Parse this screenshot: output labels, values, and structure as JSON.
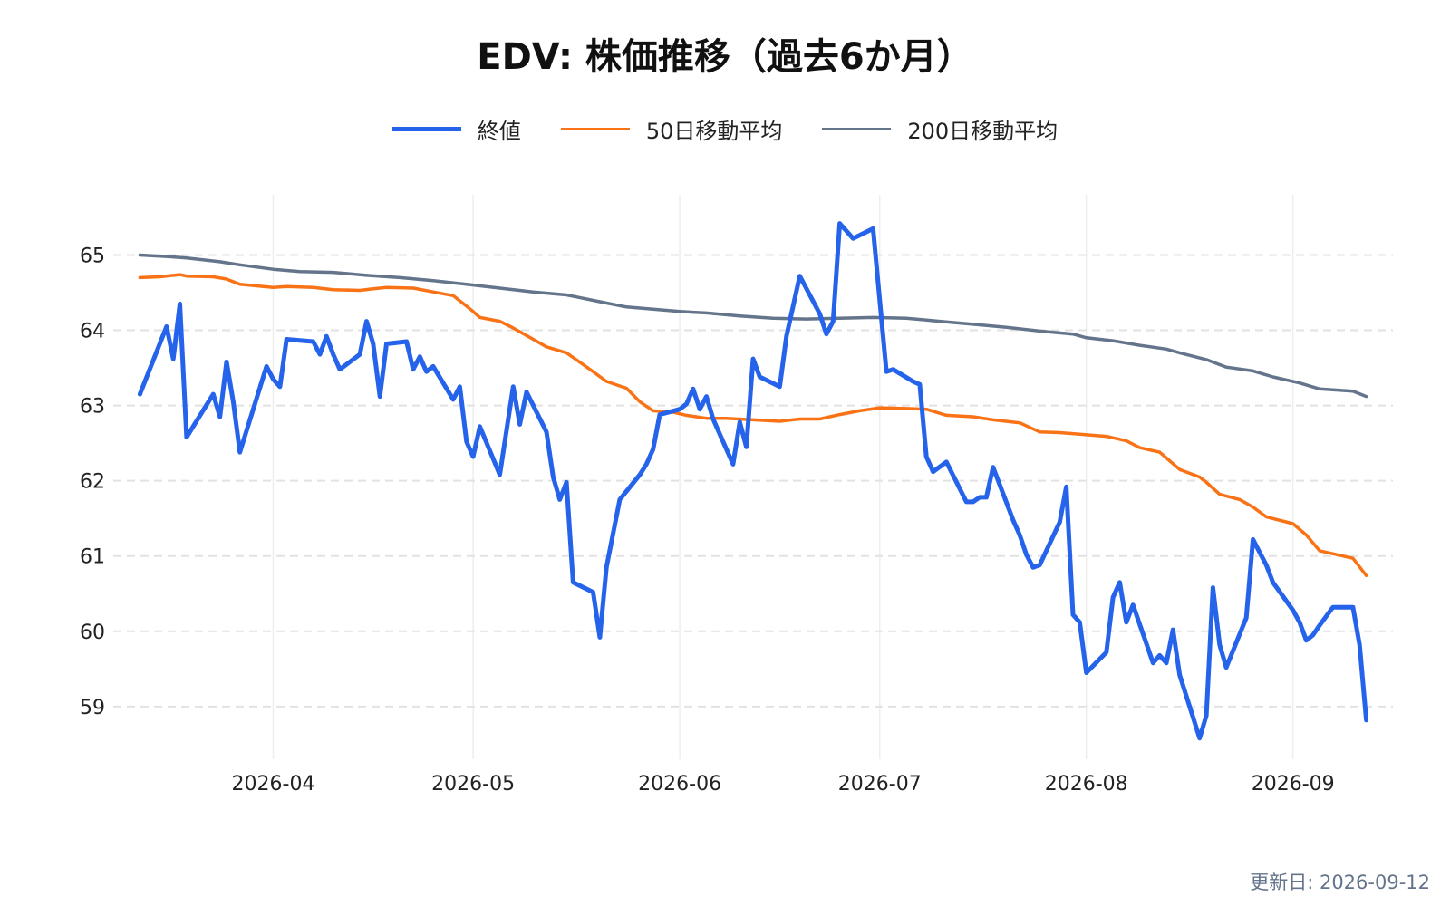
{
  "title": "EDV: 株価推移（過去6か月）",
  "updated": "更新日: 2026-09-12",
  "chart_data": {
    "type": "line",
    "title": "EDV: 株価推移（過去6か月）",
    "xlabel": "",
    "ylabel": "",
    "ylim": [
      58.3,
      65.8
    ],
    "xlim": [
      "2026-03-08",
      "2026-09-16"
    ],
    "x_ticks": [
      "2026-04-01",
      "2026-05-01",
      "2026-06-01",
      "2026-07-01",
      "2026-08-01",
      "2026-09-01"
    ],
    "x_tick_labels": [
      "2026-04",
      "2026-05",
      "2026-06",
      "2026-07",
      "2026-08",
      "2026-09"
    ],
    "y_ticks": [
      59,
      60,
      61,
      62,
      63,
      64,
      65
    ],
    "grid": true,
    "legend_position": "top-center",
    "series": [
      {
        "name": "終値",
        "color": "#2563eb",
        "width": 5,
        "points": [
          [
            "2026-03-12",
            63.15
          ],
          [
            "2026-03-16",
            64.05
          ],
          [
            "2026-03-17",
            63.62
          ],
          [
            "2026-03-18",
            64.35
          ],
          [
            "2026-03-19",
            62.58
          ],
          [
            "2026-03-23",
            63.15
          ],
          [
            "2026-03-24",
            62.85
          ],
          [
            "2026-03-25",
            63.58
          ],
          [
            "2026-03-26",
            63.05
          ],
          [
            "2026-03-27",
            62.38
          ],
          [
            "2026-03-31",
            63.52
          ],
          [
            "2026-04-01",
            63.35
          ],
          [
            "2026-04-02",
            63.25
          ],
          [
            "2026-04-03",
            63.88
          ],
          [
            "2026-04-07",
            63.85
          ],
          [
            "2026-04-08",
            63.68
          ],
          [
            "2026-04-09",
            63.92
          ],
          [
            "2026-04-10",
            63.68
          ],
          [
            "2026-04-11",
            63.48
          ],
          [
            "2026-04-14",
            63.68
          ],
          [
            "2026-04-15",
            64.12
          ],
          [
            "2026-04-16",
            63.82
          ],
          [
            "2026-04-17",
            63.12
          ],
          [
            "2026-04-18",
            63.82
          ],
          [
            "2026-04-21",
            63.85
          ],
          [
            "2026-04-22",
            63.48
          ],
          [
            "2026-04-23",
            63.65
          ],
          [
            "2026-04-24",
            63.45
          ],
          [
            "2026-04-25",
            63.52
          ],
          [
            "2026-04-28",
            63.08
          ],
          [
            "2026-04-29",
            63.25
          ],
          [
            "2026-04-30",
            62.52
          ],
          [
            "2026-05-01",
            62.32
          ],
          [
            "2026-05-02",
            62.72
          ],
          [
            "2026-05-05",
            62.08
          ],
          [
            "2026-05-07",
            63.25
          ],
          [
            "2026-05-08",
            62.75
          ],
          [
            "2026-05-09",
            63.18
          ],
          [
            "2026-05-12",
            62.65
          ],
          [
            "2026-05-13",
            62.05
          ],
          [
            "2026-05-14",
            61.75
          ],
          [
            "2026-05-15",
            61.98
          ],
          [
            "2026-05-16",
            60.65
          ],
          [
            "2026-05-19",
            60.52
          ],
          [
            "2026-05-20",
            59.92
          ],
          [
            "2026-05-21",
            60.85
          ],
          [
            "2026-05-23",
            61.75
          ],
          [
            "2026-05-26",
            62.08
          ],
          [
            "2026-05-27",
            62.22
          ],
          [
            "2026-05-28",
            62.42
          ],
          [
            "2026-05-29",
            62.88
          ],
          [
            "2026-06-01",
            62.95
          ],
          [
            "2026-06-02",
            63.02
          ],
          [
            "2026-06-03",
            63.22
          ],
          [
            "2026-06-04",
            62.95
          ],
          [
            "2026-06-05",
            63.12
          ],
          [
            "2026-06-06",
            62.82
          ],
          [
            "2026-06-09",
            62.22
          ],
          [
            "2026-06-10",
            62.78
          ],
          [
            "2026-06-11",
            62.45
          ],
          [
            "2026-06-12",
            63.62
          ],
          [
            "2026-06-13",
            63.38
          ],
          [
            "2026-06-16",
            63.25
          ],
          [
            "2026-06-17",
            63.92
          ],
          [
            "2026-06-19",
            64.72
          ],
          [
            "2026-06-22",
            64.22
          ],
          [
            "2026-06-23",
            63.95
          ],
          [
            "2026-06-24",
            64.12
          ],
          [
            "2026-06-25",
            65.42
          ],
          [
            "2026-06-27",
            65.22
          ],
          [
            "2026-06-30",
            65.35
          ],
          [
            "2026-07-02",
            63.45
          ],
          [
            "2026-07-03",
            63.48
          ],
          [
            "2026-07-06",
            63.32
          ],
          [
            "2026-07-07",
            63.28
          ],
          [
            "2026-07-08",
            62.32
          ],
          [
            "2026-07-09",
            62.12
          ],
          [
            "2026-07-11",
            62.25
          ],
          [
            "2026-07-14",
            61.72
          ],
          [
            "2026-07-15",
            61.72
          ],
          [
            "2026-07-16",
            61.78
          ],
          [
            "2026-07-17",
            61.78
          ],
          [
            "2026-07-18",
            62.18
          ],
          [
            "2026-07-21",
            61.48
          ],
          [
            "2026-07-22",
            61.28
          ],
          [
            "2026-07-23",
            61.02
          ],
          [
            "2026-07-24",
            60.85
          ],
          [
            "2026-07-25",
            60.88
          ],
          [
            "2026-07-28",
            61.45
          ],
          [
            "2026-07-29",
            61.92
          ],
          [
            "2026-07-30",
            60.22
          ],
          [
            "2026-07-31",
            60.12
          ],
          [
            "2026-08-01",
            59.45
          ],
          [
            "2026-08-04",
            59.72
          ],
          [
            "2026-08-05",
            60.45
          ],
          [
            "2026-08-06",
            60.65
          ],
          [
            "2026-08-07",
            60.12
          ],
          [
            "2026-08-08",
            60.35
          ],
          [
            "2026-08-11",
            59.58
          ],
          [
            "2026-08-12",
            59.68
          ],
          [
            "2026-08-13",
            59.58
          ],
          [
            "2026-08-14",
            60.02
          ],
          [
            "2026-08-15",
            59.42
          ],
          [
            "2026-08-18",
            58.58
          ],
          [
            "2026-08-19",
            58.88
          ],
          [
            "2026-08-20",
            60.58
          ],
          [
            "2026-08-21",
            59.82
          ],
          [
            "2026-08-22",
            59.52
          ],
          [
            "2026-08-25",
            60.18
          ],
          [
            "2026-08-26",
            61.22
          ],
          [
            "2026-08-27",
            61.05
          ],
          [
            "2026-08-28",
            60.88
          ],
          [
            "2026-08-29",
            60.65
          ],
          [
            "2026-09-01",
            60.28
          ],
          [
            "2026-09-02",
            60.12
          ],
          [
            "2026-09-03",
            59.88
          ],
          [
            "2026-09-04",
            59.95
          ],
          [
            "2026-09-05",
            60.08
          ],
          [
            "2026-09-07",
            60.32
          ],
          [
            "2026-09-10",
            60.32
          ],
          [
            "2026-09-11",
            59.82
          ],
          [
            "2026-09-12",
            58.82
          ]
        ]
      },
      {
        "name": "50日移動平均",
        "color": "#f97316",
        "width": 3.5,
        "points": [
          [
            "2026-03-12",
            64.7
          ],
          [
            "2026-03-15",
            64.71
          ],
          [
            "2026-03-17",
            64.73
          ],
          [
            "2026-03-18",
            64.74
          ],
          [
            "2026-03-19",
            64.72
          ],
          [
            "2026-03-23",
            64.71
          ],
          [
            "2026-03-25",
            64.68
          ],
          [
            "2026-03-27",
            64.61
          ],
          [
            "2026-04-01",
            64.57
          ],
          [
            "2026-04-03",
            64.58
          ],
          [
            "2026-04-07",
            64.57
          ],
          [
            "2026-04-10",
            64.54
          ],
          [
            "2026-04-14",
            64.53
          ],
          [
            "2026-04-16",
            64.55
          ],
          [
            "2026-04-18",
            64.57
          ],
          [
            "2026-04-22",
            64.56
          ],
          [
            "2026-04-25",
            64.51
          ],
          [
            "2026-04-28",
            64.46
          ],
          [
            "2026-04-30",
            64.32
          ],
          [
            "2026-05-01",
            64.25
          ],
          [
            "2026-05-02",
            64.17
          ],
          [
            "2026-05-05",
            64.12
          ],
          [
            "2026-05-07",
            64.03
          ],
          [
            "2026-05-09",
            63.93
          ],
          [
            "2026-05-12",
            63.78
          ],
          [
            "2026-05-15",
            63.7
          ],
          [
            "2026-05-19",
            63.45
          ],
          [
            "2026-05-21",
            63.32
          ],
          [
            "2026-05-24",
            63.23
          ],
          [
            "2026-05-26",
            63.05
          ],
          [
            "2026-05-28",
            62.93
          ],
          [
            "2026-05-31",
            62.91
          ],
          [
            "2026-06-02",
            62.87
          ],
          [
            "2026-06-05",
            62.83
          ],
          [
            "2026-06-08",
            62.83
          ],
          [
            "2026-06-12",
            62.81
          ],
          [
            "2026-06-16",
            62.79
          ],
          [
            "2026-06-19",
            62.82
          ],
          [
            "2026-06-22",
            62.82
          ],
          [
            "2026-06-25",
            62.88
          ],
          [
            "2026-06-28",
            62.93
          ],
          [
            "2026-07-01",
            62.97
          ],
          [
            "2026-07-05",
            62.96
          ],
          [
            "2026-07-08",
            62.95
          ],
          [
            "2026-07-11",
            62.87
          ],
          [
            "2026-07-15",
            62.85
          ],
          [
            "2026-07-18",
            62.81
          ],
          [
            "2026-07-22",
            62.77
          ],
          [
            "2026-07-25",
            62.65
          ],
          [
            "2026-07-28",
            62.64
          ],
          [
            "2026-07-31",
            62.62
          ],
          [
            "2026-08-04",
            62.59
          ],
          [
            "2026-08-07",
            62.53
          ],
          [
            "2026-08-09",
            62.44
          ],
          [
            "2026-08-12",
            62.38
          ],
          [
            "2026-08-15",
            62.15
          ],
          [
            "2026-08-18",
            62.05
          ],
          [
            "2026-08-19",
            61.98
          ],
          [
            "2026-08-21",
            61.82
          ],
          [
            "2026-08-24",
            61.75
          ],
          [
            "2026-08-26",
            61.65
          ],
          [
            "2026-08-28",
            61.52
          ],
          [
            "2026-09-01",
            61.43
          ],
          [
            "2026-09-03",
            61.28
          ],
          [
            "2026-09-05",
            61.07
          ],
          [
            "2026-09-10",
            60.97
          ],
          [
            "2026-09-12",
            60.74
          ]
        ]
      },
      {
        "name": "200日移動平均",
        "color": "#64748b",
        "width": 3.5,
        "points": [
          [
            "2026-03-12",
            65.0
          ],
          [
            "2026-03-16",
            64.98
          ],
          [
            "2026-03-19",
            64.96
          ],
          [
            "2026-03-24",
            64.91
          ],
          [
            "2026-03-27",
            64.87
          ],
          [
            "2026-04-01",
            64.81
          ],
          [
            "2026-04-05",
            64.78
          ],
          [
            "2026-04-10",
            64.77
          ],
          [
            "2026-04-15",
            64.73
          ],
          [
            "2026-04-20",
            64.7
          ],
          [
            "2026-04-25",
            64.66
          ],
          [
            "2026-04-30",
            64.61
          ],
          [
            "2026-05-05",
            64.56
          ],
          [
            "2026-05-10",
            64.51
          ],
          [
            "2026-05-15",
            64.47
          ],
          [
            "2026-05-20",
            64.38
          ],
          [
            "2026-05-24",
            64.31
          ],
          [
            "2026-05-28",
            64.28
          ],
          [
            "2026-06-01",
            64.25
          ],
          [
            "2026-06-05",
            64.23
          ],
          [
            "2026-06-10",
            64.19
          ],
          [
            "2026-06-15",
            64.16
          ],
          [
            "2026-06-20",
            64.15
          ],
          [
            "2026-06-25",
            64.16
          ],
          [
            "2026-06-30",
            64.17
          ],
          [
            "2026-07-05",
            64.16
          ],
          [
            "2026-07-10",
            64.12
          ],
          [
            "2026-07-15",
            64.08
          ],
          [
            "2026-07-20",
            64.04
          ],
          [
            "2026-07-25",
            63.99
          ],
          [
            "2026-07-30",
            63.95
          ],
          [
            "2026-08-01",
            63.9
          ],
          [
            "2026-08-05",
            63.86
          ],
          [
            "2026-08-09",
            63.8
          ],
          [
            "2026-08-13",
            63.75
          ],
          [
            "2026-08-15",
            63.7
          ],
          [
            "2026-08-19",
            63.61
          ],
          [
            "2026-08-22",
            63.51
          ],
          [
            "2026-08-26",
            63.46
          ],
          [
            "2026-08-29",
            63.38
          ],
          [
            "2026-09-02",
            63.3
          ],
          [
            "2026-09-05",
            63.22
          ],
          [
            "2026-09-10",
            63.19
          ],
          [
            "2026-09-12",
            63.12
          ]
        ]
      }
    ]
  }
}
